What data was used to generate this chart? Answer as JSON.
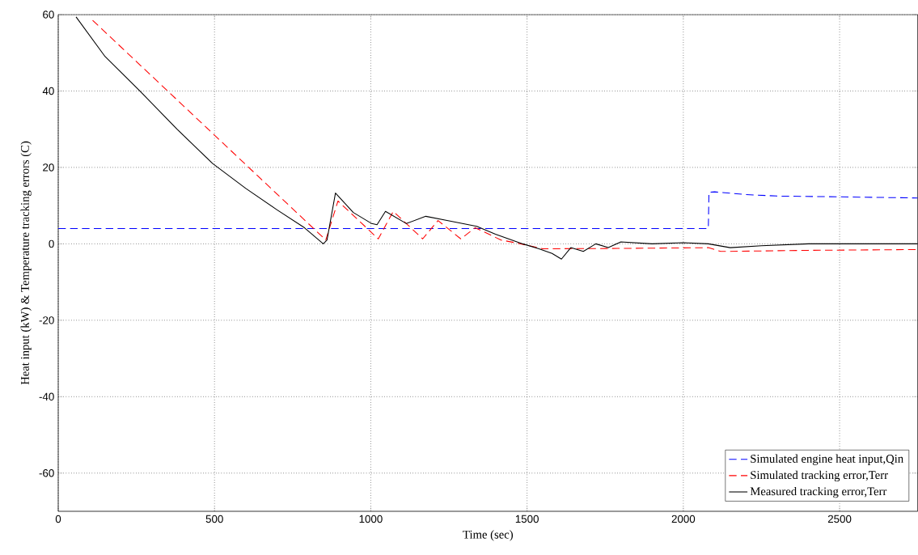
{
  "chart_data": {
    "type": "line",
    "xlabel": "Time (sec)",
    "ylabel": "Heat input (kW) & Temperature tracking errors (C)",
    "xlim": [
      0,
      2750
    ],
    "ylim": [
      -70,
      60
    ],
    "xticks": [
      0,
      500,
      1000,
      1500,
      2000,
      2500
    ],
    "yticks": [
      -60,
      -40,
      -20,
      0,
      20,
      40,
      60
    ],
    "grid": true,
    "legend": "bottom right",
    "series": [
      {
        "name": "Simulated engine heat input,Qin",
        "color": "#0000ff",
        "line_style": "dashed",
        "x": [
          0,
          2080,
          2082,
          2100,
          2200,
          2300,
          2500,
          2750
        ],
        "values": [
          4,
          4,
          13.5,
          13.6,
          12.9,
          12.5,
          12.3,
          12
        ]
      },
      {
        "name": "Simulated tracking error,Terr",
        "color": "#ff0000",
        "line_style": "dashed",
        "x": [
          110,
          856,
          895,
          1024,
          1072,
          1166,
          1215,
          1288,
          1334,
          1417,
          1480,
          1550,
          1800,
          2080,
          2120,
          2400,
          2750
        ],
        "values": [
          58.5,
          1,
          11.2,
          1.3,
          8.5,
          1.3,
          6.1,
          1.3,
          4.2,
          1,
          0,
          -1.3,
          -1.2,
          -1,
          -2,
          -1.7,
          -1.5
        ]
      },
      {
        "name": "Measured tracking error,Terr",
        "color": "#000000",
        "line_style": "solid",
        "x": [
          57,
          150,
          261,
          380,
          494,
          600,
          700,
          788,
          848,
          860,
          887,
          944,
          1003,
          1020,
          1047,
          1114,
          1176,
          1244,
          1339,
          1399,
          1486,
          1538,
          1580,
          1610,
          1640,
          1680,
          1720,
          1760,
          1800,
          1900,
          2000,
          2080,
          2150,
          2250,
          2400,
          2550,
          2750
        ],
        "values": [
          59.4,
          49,
          40,
          30,
          21,
          14.5,
          8.9,
          4.2,
          0,
          1,
          13.3,
          8.2,
          5.3,
          5,
          8.5,
          5.3,
          7.2,
          6.1,
          4.6,
          2.5,
          0,
          -1.3,
          -2.5,
          -4,
          -1,
          -2,
          0,
          -1,
          0.5,
          0,
          0.3,
          0,
          -1,
          -0.5,
          0,
          0,
          0
        ]
      }
    ]
  }
}
